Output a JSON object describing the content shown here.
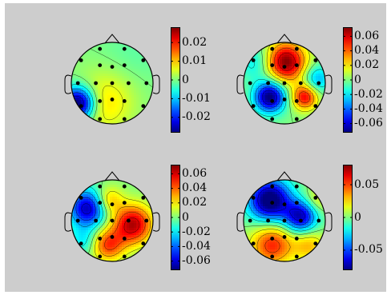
{
  "chart_data": [
    {
      "type": "heatmap",
      "subtype": "eeg-topographic-map",
      "colormap": "jet",
      "colorbar_ticks": [
        0.02,
        0.01,
        0,
        -0.01,
        -0.02
      ],
      "colorbar_tick_labels": [
        "0.02",
        "0.01",
        "0",
        "-0.01",
        "-0.02"
      ],
      "colorbar_range": [
        -0.028,
        0.028
      ],
      "electrodes": [
        [
          0.35,
          0.92
        ],
        [
          0.65,
          0.92
        ],
        [
          0.12,
          0.78
        ],
        [
          0.88,
          0.78
        ],
        [
          0.35,
          0.72
        ],
        [
          0.65,
          0.72
        ],
        [
          0.5,
          0.7
        ],
        [
          0.08,
          0.5
        ],
        [
          0.92,
          0.5
        ],
        [
          0.3,
          0.5
        ],
        [
          0.7,
          0.5
        ],
        [
          0.5,
          0.5
        ],
        [
          0.12,
          0.22
        ],
        [
          0.88,
          0.22
        ],
        [
          0.35,
          0.28
        ],
        [
          0.65,
          0.28
        ],
        [
          0.5,
          0.3
        ],
        [
          0.35,
          0.06
        ],
        [
          0.65,
          0.06
        ]
      ],
      "sources": [
        {
          "x": 0.08,
          "y": 0.25,
          "amp": -0.032,
          "sigma": 0.14
        },
        {
          "x": 0.4,
          "y": 0.25,
          "amp": 0.008,
          "sigma": 0.25
        },
        {
          "x": 0.7,
          "y": 0.8,
          "amp": -0.003,
          "sigma": 0.3
        },
        {
          "x": 0.55,
          "y": 0.6,
          "amp": 0.002,
          "sigma": 0.3
        }
      ]
    },
    {
      "type": "heatmap",
      "subtype": "eeg-topographic-map",
      "colormap": "jet",
      "colorbar_ticks": [
        0.06,
        0.04,
        0.02,
        0,
        -0.02,
        -0.04,
        -0.06
      ],
      "colorbar_tick_labels": [
        "0.06",
        "0.04",
        "0.02",
        "0",
        "-0.02",
        "-0.04",
        "-0.06"
      ],
      "colorbar_range": [
        -0.072,
        0.072
      ],
      "electrodes": [
        [
          0.35,
          0.92
        ],
        [
          0.65,
          0.92
        ],
        [
          0.12,
          0.78
        ],
        [
          0.88,
          0.78
        ],
        [
          0.35,
          0.72
        ],
        [
          0.65,
          0.72
        ],
        [
          0.5,
          0.7
        ],
        [
          0.08,
          0.5
        ],
        [
          0.92,
          0.5
        ],
        [
          0.3,
          0.5
        ],
        [
          0.7,
          0.5
        ],
        [
          0.5,
          0.5
        ],
        [
          0.12,
          0.22
        ],
        [
          0.88,
          0.22
        ],
        [
          0.35,
          0.28
        ],
        [
          0.65,
          0.28
        ],
        [
          0.5,
          0.3
        ],
        [
          0.35,
          0.06
        ],
        [
          0.65,
          0.06
        ]
      ],
      "sources": [
        {
          "x": 0.52,
          "y": 0.76,
          "amp": 0.072,
          "sigma": 0.17
        },
        {
          "x": 0.32,
          "y": 0.33,
          "amp": -0.075,
          "sigma": 0.13
        },
        {
          "x": 0.75,
          "y": 0.33,
          "amp": 0.055,
          "sigma": 0.11
        },
        {
          "x": 0.9,
          "y": 0.55,
          "amp": -0.03,
          "sigma": 0.12
        },
        {
          "x": 0.15,
          "y": 0.75,
          "amp": -0.02,
          "sigma": 0.15
        }
      ]
    },
    {
      "type": "heatmap",
      "subtype": "eeg-topographic-map",
      "colormap": "jet",
      "colorbar_ticks": [
        0.06,
        0.04,
        0.02,
        0,
        -0.02,
        -0.04,
        -0.06
      ],
      "colorbar_tick_labels": [
        "0.06",
        "0.04",
        "0.02",
        "0",
        "-0.02",
        "-0.04",
        "-0.06"
      ],
      "colorbar_range": [
        -0.072,
        0.072
      ],
      "electrodes": [
        [
          0.35,
          0.92
        ],
        [
          0.65,
          0.92
        ],
        [
          0.12,
          0.78
        ],
        [
          0.88,
          0.78
        ],
        [
          0.35,
          0.72
        ],
        [
          0.65,
          0.72
        ],
        [
          0.5,
          0.7
        ],
        [
          0.08,
          0.5
        ],
        [
          0.92,
          0.5
        ],
        [
          0.3,
          0.5
        ],
        [
          0.7,
          0.5
        ],
        [
          0.5,
          0.5
        ],
        [
          0.12,
          0.22
        ],
        [
          0.88,
          0.22
        ],
        [
          0.35,
          0.28
        ],
        [
          0.65,
          0.28
        ],
        [
          0.5,
          0.3
        ],
        [
          0.35,
          0.06
        ],
        [
          0.65,
          0.06
        ]
      ],
      "sources": [
        {
          "x": 0.2,
          "y": 0.65,
          "amp": -0.065,
          "sigma": 0.16
        },
        {
          "x": 0.75,
          "y": 0.45,
          "amp": 0.065,
          "sigma": 0.17
        },
        {
          "x": 0.45,
          "y": 0.2,
          "amp": 0.045,
          "sigma": 0.14
        },
        {
          "x": 0.45,
          "y": 0.75,
          "amp": 0.03,
          "sigma": 0.12
        },
        {
          "x": 0.15,
          "y": 0.25,
          "amp": -0.02,
          "sigma": 0.12
        }
      ]
    },
    {
      "type": "heatmap",
      "subtype": "eeg-topographic-map",
      "colormap": "jet",
      "colorbar_ticks": [
        0.05,
        0,
        -0.05
      ],
      "colorbar_tick_labels": [
        "0.05",
        "0",
        "-0.05"
      ],
      "colorbar_range": [
        -0.08,
        0.08
      ],
      "electrodes": [
        [
          0.35,
          0.92
        ],
        [
          0.65,
          0.92
        ],
        [
          0.12,
          0.78
        ],
        [
          0.88,
          0.78
        ],
        [
          0.35,
          0.72
        ],
        [
          0.65,
          0.72
        ],
        [
          0.5,
          0.7
        ],
        [
          0.08,
          0.5
        ],
        [
          0.92,
          0.5
        ],
        [
          0.3,
          0.5
        ],
        [
          0.7,
          0.5
        ],
        [
          0.5,
          0.5
        ],
        [
          0.12,
          0.22
        ],
        [
          0.88,
          0.22
        ],
        [
          0.35,
          0.28
        ],
        [
          0.65,
          0.28
        ],
        [
          0.5,
          0.3
        ],
        [
          0.35,
          0.06
        ],
        [
          0.65,
          0.06
        ]
      ],
      "sources": [
        {
          "x": 0.32,
          "y": 0.75,
          "amp": -0.09,
          "sigma": 0.18
        },
        {
          "x": 0.7,
          "y": 0.55,
          "amp": -0.07,
          "sigma": 0.14
        },
        {
          "x": 0.35,
          "y": 0.2,
          "amp": 0.055,
          "sigma": 0.18
        },
        {
          "x": 0.8,
          "y": 0.2,
          "amp": 0.03,
          "sigma": 0.14
        },
        {
          "x": 0.9,
          "y": 0.75,
          "amp": 0.02,
          "sigma": 0.12
        }
      ]
    }
  ]
}
